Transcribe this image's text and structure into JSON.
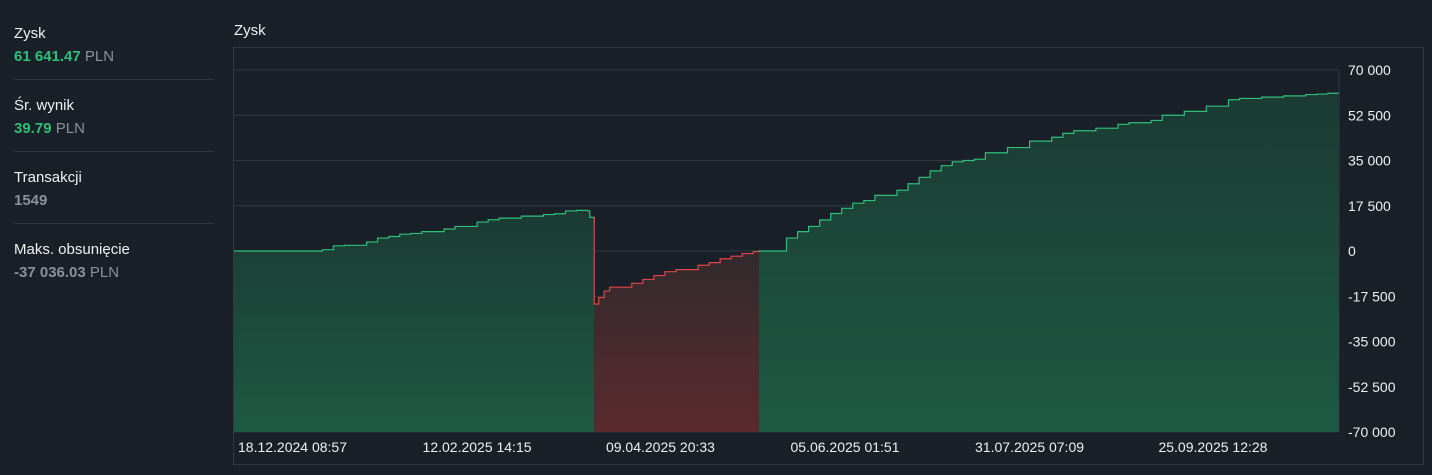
{
  "stats": {
    "profit": {
      "label": "Zysk",
      "value": "61 641.47",
      "currency": "PLN"
    },
    "avg": {
      "label": "Śr. wynik",
      "value": "39.79",
      "currency": "PLN"
    },
    "trades": {
      "label": "Transakcji",
      "value": "1549"
    },
    "drawdown": {
      "label": "Maks. obsunięcie",
      "value": "-37 036.03",
      "currency": "PLN"
    }
  },
  "chart_title": "Zysk",
  "colors": {
    "positive": "#2fbf7a",
    "negative": "#e0454a",
    "bg": "#1a2027",
    "grid": "#2f3a44"
  },
  "chart_data": {
    "type": "area",
    "title": "Zysk",
    "ylim": [
      -70000,
      70000
    ],
    "yticks": [
      70000,
      52500,
      35000,
      17500,
      0,
      -17500,
      -35000,
      -52500,
      -70000
    ],
    "ytick_labels": [
      "70 000",
      "52 500",
      "35 000",
      "17 500",
      "0",
      "-17 500",
      "-35 000",
      "-52 500",
      "-70 000"
    ],
    "xtick_labels": [
      "18.12.2024 08:57",
      "12.02.2025 14:15",
      "09.04.2025 20:33",
      "05.06.2025 01:51",
      "31.07.2025 07:09",
      "25.09.2025 12:28"
    ],
    "xlim": [
      0,
      1
    ],
    "xtick_positions": [
      0,
      0.167,
      0.333,
      0.5,
      0.667,
      0.833
    ],
    "grid": true,
    "series": [
      {
        "x": [
          0,
          0.08,
          0.09,
          0.1,
          0.12,
          0.13,
          0.14,
          0.15,
          0.16,
          0.17,
          0.19,
          0.2,
          0.22,
          0.23,
          0.24,
          0.26,
          0.28,
          0.29,
          0.3,
          0.31,
          0.32,
          0.322,
          0.326,
          0.326,
          0.33,
          0.335,
          0.34,
          0.36,
          0.37,
          0.38,
          0.39,
          0.4,
          0.42,
          0.43,
          0.44,
          0.45,
          0.46,
          0.47,
          0.475,
          0.5,
          0.51,
          0.52,
          0.53,
          0.54,
          0.55,
          0.56,
          0.57,
          0.58,
          0.6,
          0.61,
          0.62,
          0.63,
          0.64,
          0.65,
          0.66,
          0.67,
          0.68,
          0.7,
          0.72,
          0.74,
          0.75,
          0.76,
          0.78,
          0.8,
          0.81,
          0.83,
          0.84,
          0.86,
          0.88,
          0.9,
          0.91,
          0.93,
          0.95,
          0.97,
          0.98,
          0.99,
          1.0
        ],
        "y": [
          0,
          500,
          2000,
          2200,
          3500,
          5000,
          5600,
          6500,
          6800,
          7500,
          8500,
          9500,
          11200,
          12100,
          12700,
          13500,
          14100,
          14400,
          15500,
          15700,
          15500,
          13000,
          11000,
          -20500,
          -18000,
          -15500,
          -14000,
          -12500,
          -11000,
          -9500,
          -8000,
          -7200,
          -5500,
          -4500,
          -3000,
          -2000,
          -1000,
          -200,
          0,
          5000,
          7500,
          9500,
          12000,
          14500,
          16500,
          18500,
          19500,
          21500,
          23500,
          26000,
          28500,
          31000,
          33000,
          34500,
          35000,
          35500,
          38000,
          40000,
          42500,
          44000,
          45500,
          46500,
          47500,
          49000,
          49600,
          50500,
          52500,
          54000,
          56000,
          58500,
          59000,
          59500,
          60000,
          60500,
          60700,
          61000,
          61641
        ]
      }
    ]
  }
}
